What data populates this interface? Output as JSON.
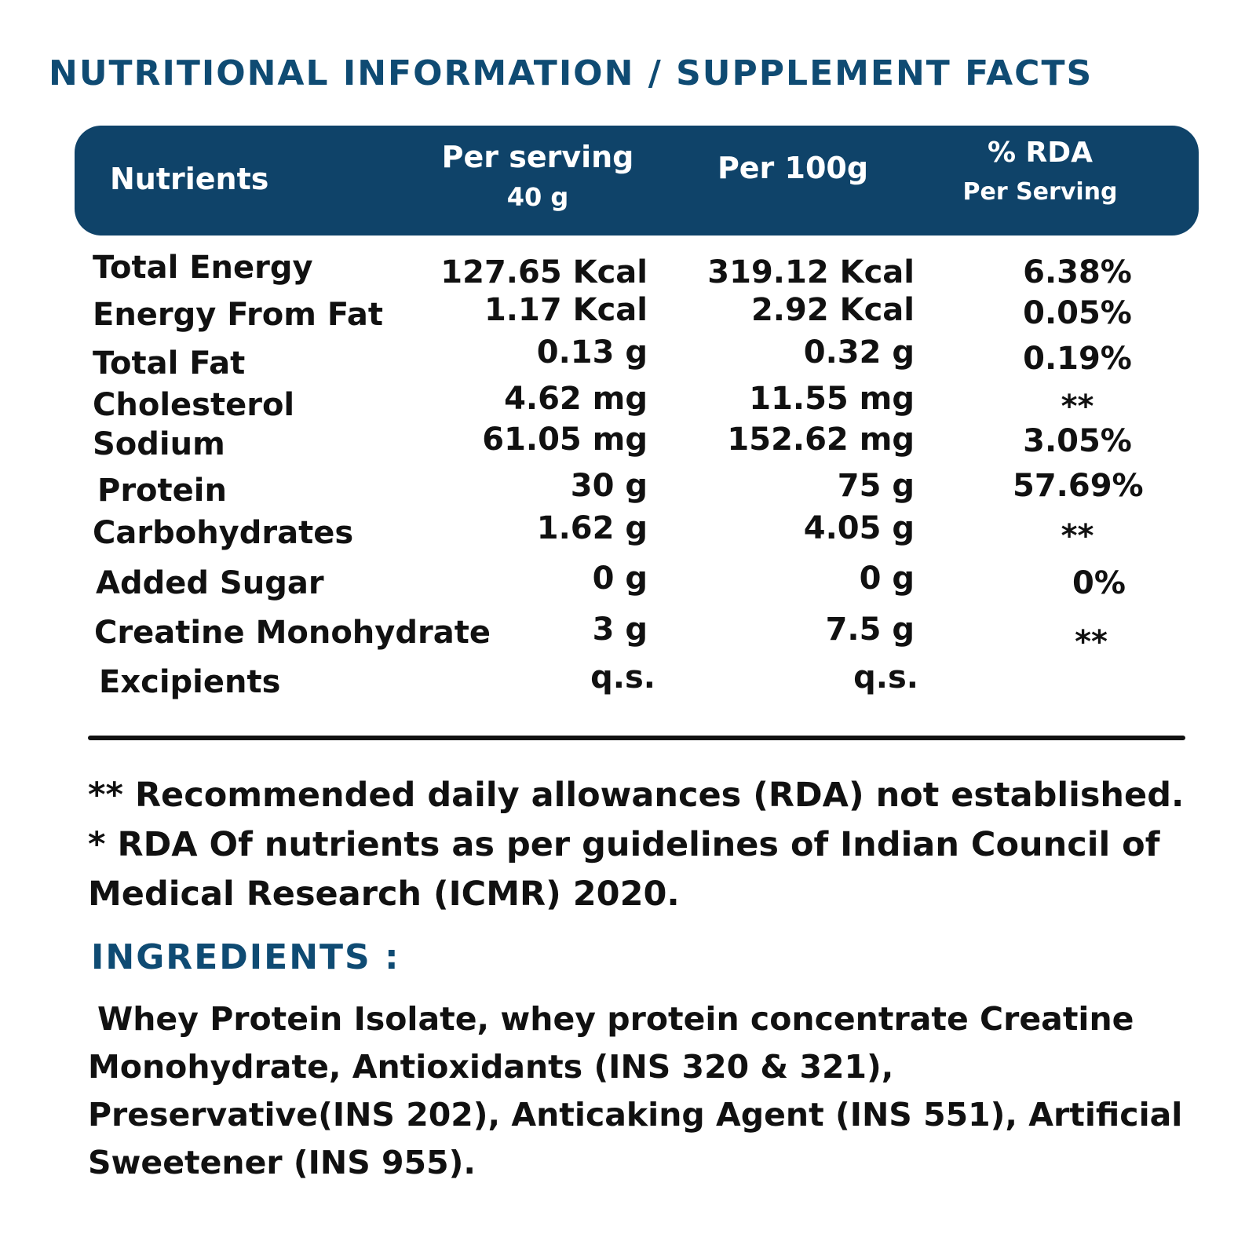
{
  "title": "NUTRITIONAL INFORMATION / SUPPLEMENT FACTS",
  "header": {
    "nutrients": "Nutrients",
    "per_serving": "Per serving",
    "per_serving_sub": "40 g",
    "per_100g": "Per 100g",
    "rda": "% RDA",
    "rda_sub": "Per Serving"
  },
  "rows": [
    {
      "name": "Total Energy",
      "serving": "127.65 Kcal",
      "per100": "319.12 Kcal",
      "rda": "6.38%"
    },
    {
      "name": "Energy From Fat",
      "serving": "1.17 Kcal",
      "per100": "2.92 Kcal",
      "rda": "0.05%"
    },
    {
      "name": "Total Fat",
      "serving": "0.13 g",
      "per100": "0.32 g",
      "rda": "0.19%"
    },
    {
      "name": "Cholesterol",
      "serving": "4.62 mg",
      "per100": "11.55 mg",
      "rda": "**"
    },
    {
      "name": "Sodium",
      "serving": "61.05 mg",
      "per100": "152.62 mg",
      "rda": "3.05%"
    },
    {
      "name": "Protein",
      "serving": "30 g",
      "per100": "75 g",
      "rda": "57.69%"
    },
    {
      "name": "Carbohydrates",
      "serving": "1.62 g",
      "per100": "4.05 g",
      "rda": "**"
    },
    {
      "name": "Added Sugar",
      "serving": "0 g",
      "per100": "0 g",
      "rda": "0%"
    },
    {
      "name": "Creatine Monohydrate",
      "serving": "3 g",
      "per100": "7.5 g",
      "rda": "**"
    },
    {
      "name": "Excipients",
      "serving": "q.s.",
      "per100": "q.s.",
      "rda": ""
    }
  ],
  "notes": {
    "line1": "** Recommended daily allowances (RDA) not established.",
    "line2": "* RDA Of nutrients as per guidelines of Indian Council of Medical Research  (ICMR) 2020."
  },
  "ingredients": {
    "title": "INGREDIENTS :",
    "text": "Whey Protein Isolate, whey protein concentrate Creatine Monohydrate, Antioxidants (INS 320 & 321), Preservative(INS 202), Anticaking Agent (INS 551), Artificial Sweetener (INS 955)."
  },
  "colors": {
    "brand_blue": "#0f4369",
    "title_blue": "#0f4b73"
  }
}
